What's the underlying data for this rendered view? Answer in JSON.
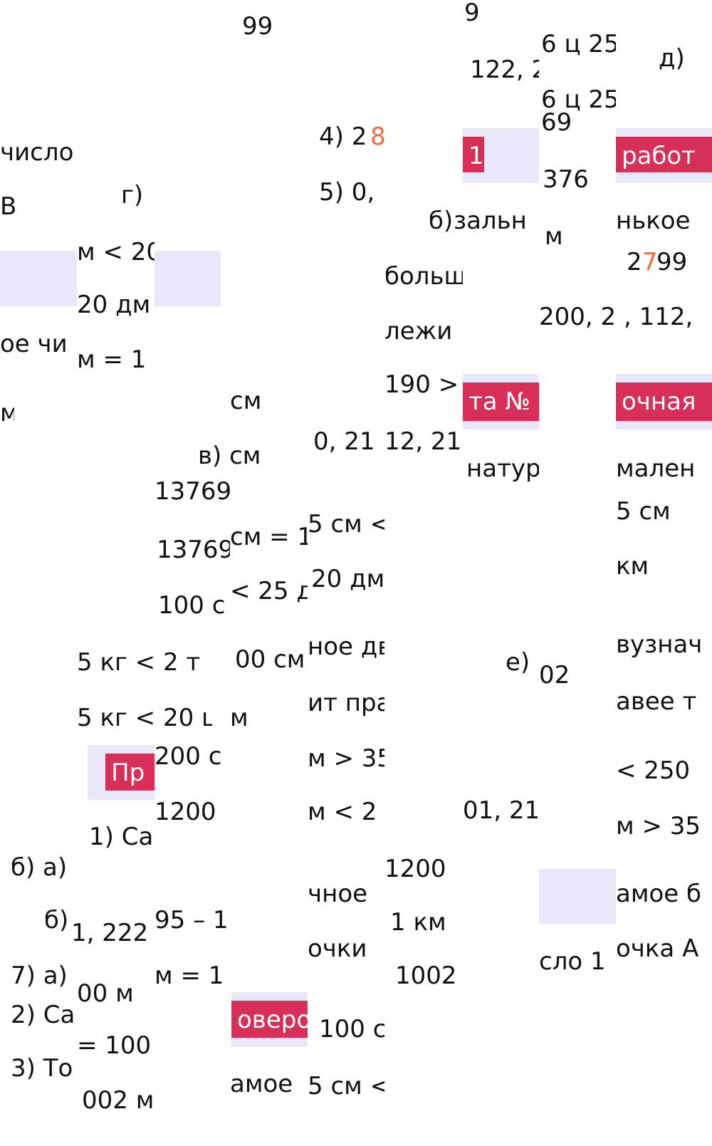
{
  "fragments": [
    "99",
    "9",
    "6 ц 25",
    "д)",
    "122, 2",
    "6 ц 25",
    "69",
    "4) 2",
    "8",
    "число",
    "376",
    "В",
    "г)",
    "5) 0,",
    "б)",
    "зальн",
    "м",
    "нькое",
    "м < 20",
    "2",
    "7",
    "99",
    "больш",
    "20 дм",
    "200, 2 , 112,",
    "лежи",
    "ое чи",
    "м = 1",
    "190 >",
    "см",
    "м",
    "0, 21",
    "12, 21",
    "натур",
    "мален",
    "в) см",
    "13769",
    "5 см",
    "13769",
    "см = 1",
    "5 см <",
    "км",
    "100 с",
    "< 25 д",
    "20 дм",
    "ное дв",
    "00 см",
    "5 кг < 2 т",
    "е)",
    "02",
    "вузнач",
    "авее т",
    "5 кг < 20 ц",
    "м",
    "ит пра",
    "200 с",
    "м > 35",
    "< 250",
    "1200",
    "м < 2",
    "01, 21",
    "м > 35",
    "1) Са",
    "1200",
    "б) а)",
    "амое б",
    "чное",
    "б)",
    "1, 222",
    "95 – 1",
    "1 км",
    "очки",
    "сло 1",
    "очка А",
    "7) а)",
    "м = 1",
    "1002",
    "00 м",
    "2) Са",
    "= 100",
    "100 с",
    "3) То",
    "амое",
    "5 см <",
    "002 м"
  ],
  "labels": [
    "1",
    "работ",
    "та №",
    "очная",
    "Пр",
    "оверо"
  ]
}
